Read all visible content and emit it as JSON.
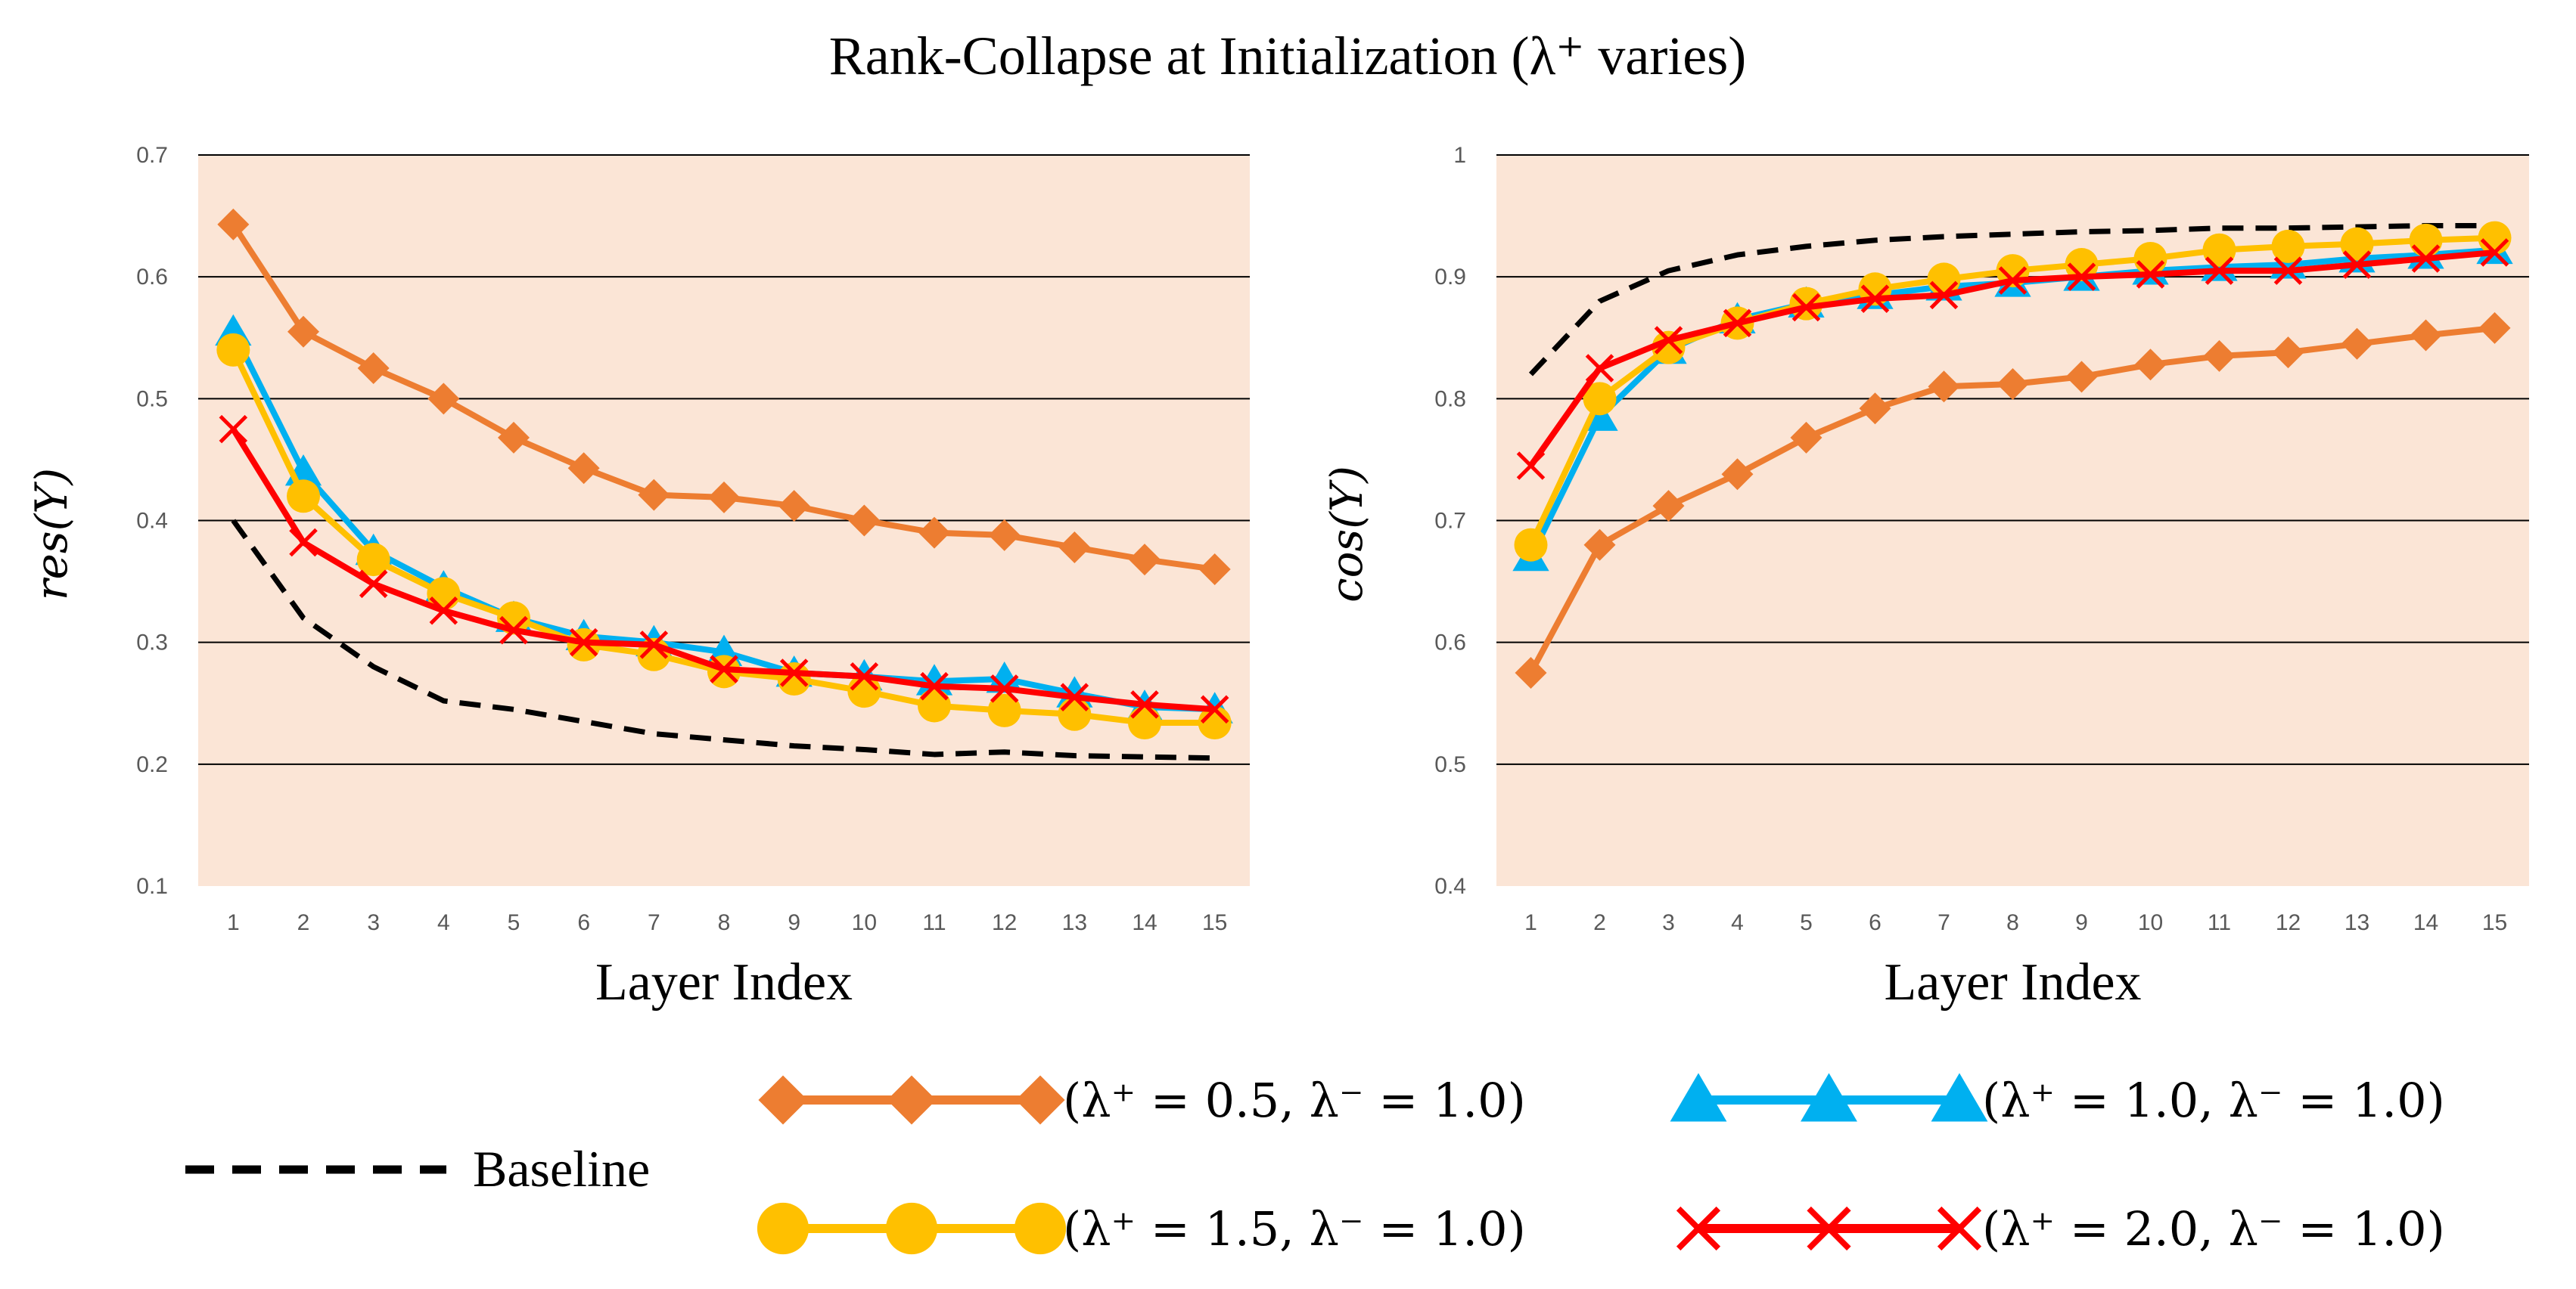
{
  "chart_data": [
    {
      "type": "line",
      "title": "Rank-Collapse at Initialization (λ⁺ varies)",
      "xlabel": "Layer Index",
      "ylabel": "res(Y)",
      "categories": [
        "1",
        "2",
        "3",
        "4",
        "5",
        "6",
        "7",
        "8",
        "9",
        "10",
        "11",
        "12",
        "13",
        "14",
        "15"
      ],
      "ylim": [
        0.1,
        0.7
      ],
      "yticks": [
        "0.1",
        "0.2",
        "0.3",
        "0.4",
        "0.5",
        "0.6",
        "0.7"
      ],
      "grid": true,
      "series": [
        {
          "name": "Baseline",
          "color": "#000000",
          "marker": "none",
          "dashed": true,
          "values": [
            0.4,
            0.32,
            0.28,
            0.252,
            0.245,
            0.235,
            0.225,
            0.22,
            0.215,
            0.212,
            0.208,
            0.21,
            0.207,
            0.206,
            0.205
          ]
        },
        {
          "name": "(λ⁺ = 0.5, λ⁻ = 1.0)",
          "color": "#ED7D31",
          "marker": "diamond",
          "values": [
            0.643,
            0.555,
            0.525,
            0.5,
            0.468,
            0.443,
            0.421,
            0.419,
            0.412,
            0.4,
            0.39,
            0.388,
            0.378,
            0.368,
            0.36
          ]
        },
        {
          "name": "(λ⁺ = 1.0, λ⁻ = 1.0)",
          "color": "#00B0F0",
          "marker": "triangle",
          "values": [
            0.555,
            0.44,
            0.375,
            0.345,
            0.32,
            0.305,
            0.3,
            0.292,
            0.275,
            0.272,
            0.268,
            0.27,
            0.258,
            0.247,
            0.245
          ]
        },
        {
          "name": "(λ⁺ = 1.5, λ⁻ = 1.0)",
          "color": "#FFC000",
          "marker": "circle",
          "values": [
            0.54,
            0.42,
            0.368,
            0.34,
            0.32,
            0.298,
            0.29,
            0.276,
            0.27,
            0.26,
            0.248,
            0.244,
            0.241,
            0.234,
            0.234
          ]
        },
        {
          "name": "(λ⁺ = 2.0, λ⁻ = 1.0)",
          "color": "#FF0000",
          "marker": "x",
          "values": [
            0.475,
            0.382,
            0.348,
            0.326,
            0.31,
            0.3,
            0.298,
            0.278,
            0.275,
            0.272,
            0.264,
            0.262,
            0.255,
            0.249,
            0.245
          ]
        }
      ]
    },
    {
      "type": "line",
      "xlabel": "Layer Index",
      "ylabel": "cos(Y)",
      "categories": [
        "1",
        "2",
        "3",
        "4",
        "5",
        "6",
        "7",
        "8",
        "9",
        "10",
        "11",
        "12",
        "13",
        "14",
        "15"
      ],
      "ylim": [
        0.4,
        1.0
      ],
      "yticks": [
        "0.4",
        "0.5",
        "0.6",
        "0.7",
        "0.8",
        "0.9",
        "1"
      ],
      "grid": true,
      "series": [
        {
          "name": "Baseline",
          "color": "#000000",
          "marker": "none",
          "dashed": true,
          "values": [
            0.82,
            0.88,
            0.905,
            0.918,
            0.925,
            0.93,
            0.933,
            0.935,
            0.937,
            0.938,
            0.94,
            0.94,
            0.941,
            0.942,
            0.942
          ]
        },
        {
          "name": "(λ⁺ = 0.5, λ⁻ = 1.0)",
          "color": "#ED7D31",
          "marker": "diamond",
          "values": [
            0.575,
            0.68,
            0.712,
            0.738,
            0.768,
            0.792,
            0.81,
            0.812,
            0.818,
            0.828,
            0.835,
            0.838,
            0.845,
            0.852,
            0.858
          ]
        },
        {
          "name": "(λ⁺ = 1.0, λ⁻ = 1.0)",
          "color": "#00B0F0",
          "marker": "triangle",
          "values": [
            0.67,
            0.785,
            0.84,
            0.865,
            0.878,
            0.885,
            0.892,
            0.895,
            0.9,
            0.905,
            0.908,
            0.91,
            0.915,
            0.918,
            0.922
          ]
        },
        {
          "name": "(λ⁺ = 1.5, λ⁻ = 1.0)",
          "color": "#FFC000",
          "marker": "circle",
          "values": [
            0.68,
            0.8,
            0.842,
            0.862,
            0.878,
            0.89,
            0.898,
            0.905,
            0.91,
            0.915,
            0.922,
            0.925,
            0.927,
            0.93,
            0.932
          ]
        },
        {
          "name": "(λ⁺ = 2.0, λ⁻ = 1.0)",
          "color": "#FF0000",
          "marker": "x",
          "values": [
            0.745,
            0.825,
            0.848,
            0.862,
            0.875,
            0.882,
            0.885,
            0.897,
            0.9,
            0.902,
            0.905,
            0.905,
            0.91,
            0.915,
            0.92
          ]
        }
      ]
    }
  ],
  "legend": [
    {
      "label": "Baseline",
      "color": "#000000",
      "marker": "none",
      "dashed": true
    },
    {
      "label": "(λ⁺ = 0.5, λ⁻ = 1.0)",
      "color": "#ED7D31",
      "marker": "diamond"
    },
    {
      "label": "(λ⁺ = 1.0, λ⁻ = 1.0)",
      "color": "#00B0F0",
      "marker": "triangle"
    },
    {
      "label": "(λ⁺ = 1.5, λ⁻ = 1.0)",
      "color": "#FFC000",
      "marker": "circle"
    },
    {
      "label": "(λ⁺ = 2.0, λ⁻ = 1.0)",
      "color": "#FF0000",
      "marker": "x"
    }
  ],
  "colors": {
    "plot_background": "#FBE5D6",
    "gridline": "#000000"
  }
}
